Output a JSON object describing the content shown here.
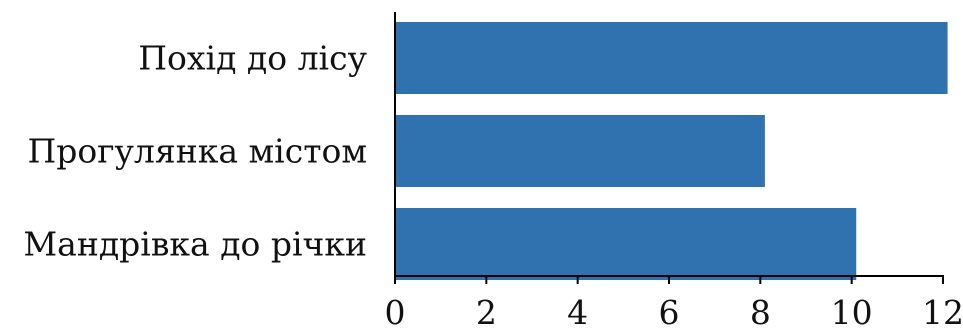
{
  "chart_data": {
    "type": "bar",
    "orientation": "horizontal",
    "categories": [
      "Похід до лісу",
      "Прогулянка містом",
      "Мандрівка до річки"
    ],
    "values": [
      12.1,
      8.1,
      10.1
    ],
    "xlim": [
      0,
      12
    ],
    "xticks": [
      "0",
      "2",
      "4",
      "6",
      "8",
      "10",
      "12"
    ],
    "title": "",
    "xlabel": "",
    "ylabel": "",
    "grid": false,
    "bar_color": "#3072b0"
  }
}
